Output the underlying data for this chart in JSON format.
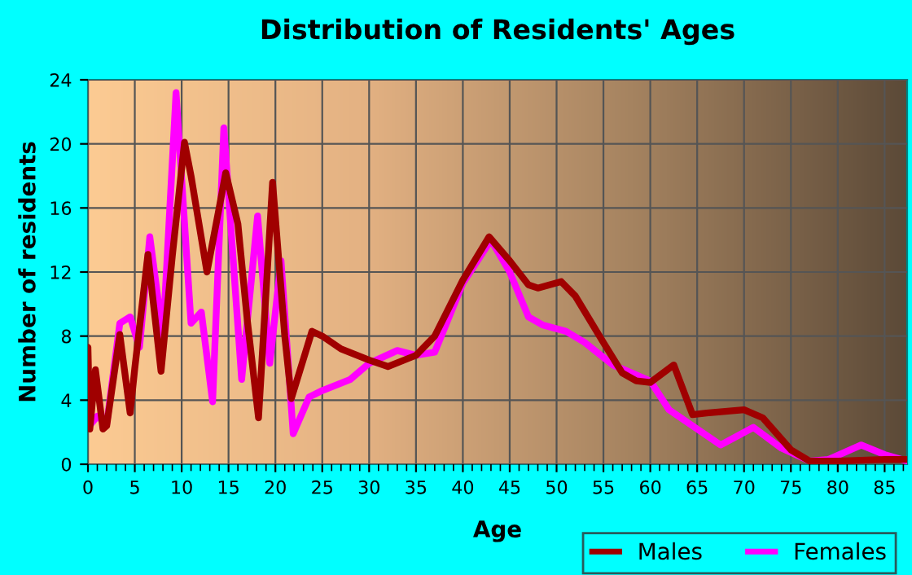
{
  "chart_data": {
    "type": "line",
    "title": "Distribution of Residents' Ages",
    "xlabel": "Age",
    "ylabel": "Number of residents",
    "xlim": [
      0,
      87.4
    ],
    "xticks": [
      0,
      5,
      10,
      15,
      20,
      25,
      30,
      35,
      40,
      45,
      50,
      55,
      60,
      65,
      70,
      75,
      80,
      85
    ],
    "ylim": [
      0,
      24
    ],
    "yticks": [
      0,
      4,
      8,
      12,
      16,
      20,
      24
    ],
    "grid": true,
    "legend": "bottom right",
    "line_style": "solid",
    "marker": "none",
    "series": [
      {
        "name": "Males",
        "color": "#a00000",
        "x": [
          0,
          0.2,
          0.8,
          1.6,
          2,
          3.4,
          4.5,
          5,
          6.4,
          7.8,
          9,
          10.3,
          11,
          12.7,
          14,
          14.7,
          16,
          17,
          18.2,
          19.7,
          21,
          21.7,
          23.9,
          25,
          27,
          30,
          32,
          35,
          37,
          40,
          42.8,
          45,
          47,
          48,
          50.5,
          52,
          55,
          57,
          58.5,
          60,
          62.5,
          64.5,
          66,
          70,
          72,
          75,
          77,
          80,
          85,
          87.4
        ],
        "values": [
          7.3,
          2.2,
          5.9,
          2.2,
          2.4,
          8.1,
          3.2,
          6,
          13.1,
          5.8,
          13,
          20.1,
          18,
          12,
          16,
          18.2,
          15,
          9,
          2.9,
          17.6,
          8,
          4.1,
          8.3,
          8,
          7.2,
          6.5,
          6.1,
          6.8,
          8,
          11.5,
          14.2,
          12.7,
          11.2,
          11,
          11.4,
          10.5,
          7.6,
          5.7,
          5.2,
          5.1,
          6.2,
          3.1,
          3.2,
          3.4,
          2.9,
          0.9,
          0.2,
          0.2,
          0.3,
          0.3
        ]
      },
      {
        "name": "Females",
        "color": "#ff00ff",
        "x": [
          0.3,
          1,
          2,
          3.4,
          4.5,
          5.5,
          6.6,
          8,
          9.4,
          11,
          12.1,
          13.3,
          14.5,
          16.4,
          18.1,
          19.4,
          20.6,
          21.9,
          23.6,
          25,
          28,
          30,
          33,
          35,
          37,
          40,
          43,
          45,
          47,
          48.5,
          51,
          53,
          56,
          58,
          60,
          62,
          64,
          67.5,
          71,
          74,
          77,
          79,
          82.5,
          85,
          87.4
        ],
        "values": [
          2.5,
          3,
          2.5,
          8.8,
          9.2,
          7.3,
          14.2,
          8,
          23.2,
          8.8,
          9.5,
          3.9,
          21,
          5.3,
          15.5,
          6.3,
          12.7,
          1.9,
          4.2,
          4.6,
          5.3,
          6.3,
          7.1,
          6.8,
          7,
          11.3,
          14,
          12,
          9.2,
          8.7,
          8.3,
          7.6,
          6.2,
          5.7,
          5.2,
          3.4,
          2.6,
          1.2,
          2.3,
          1,
          0.2,
          0.3,
          1.2,
          0.6,
          0.2
        ]
      }
    ]
  }
}
